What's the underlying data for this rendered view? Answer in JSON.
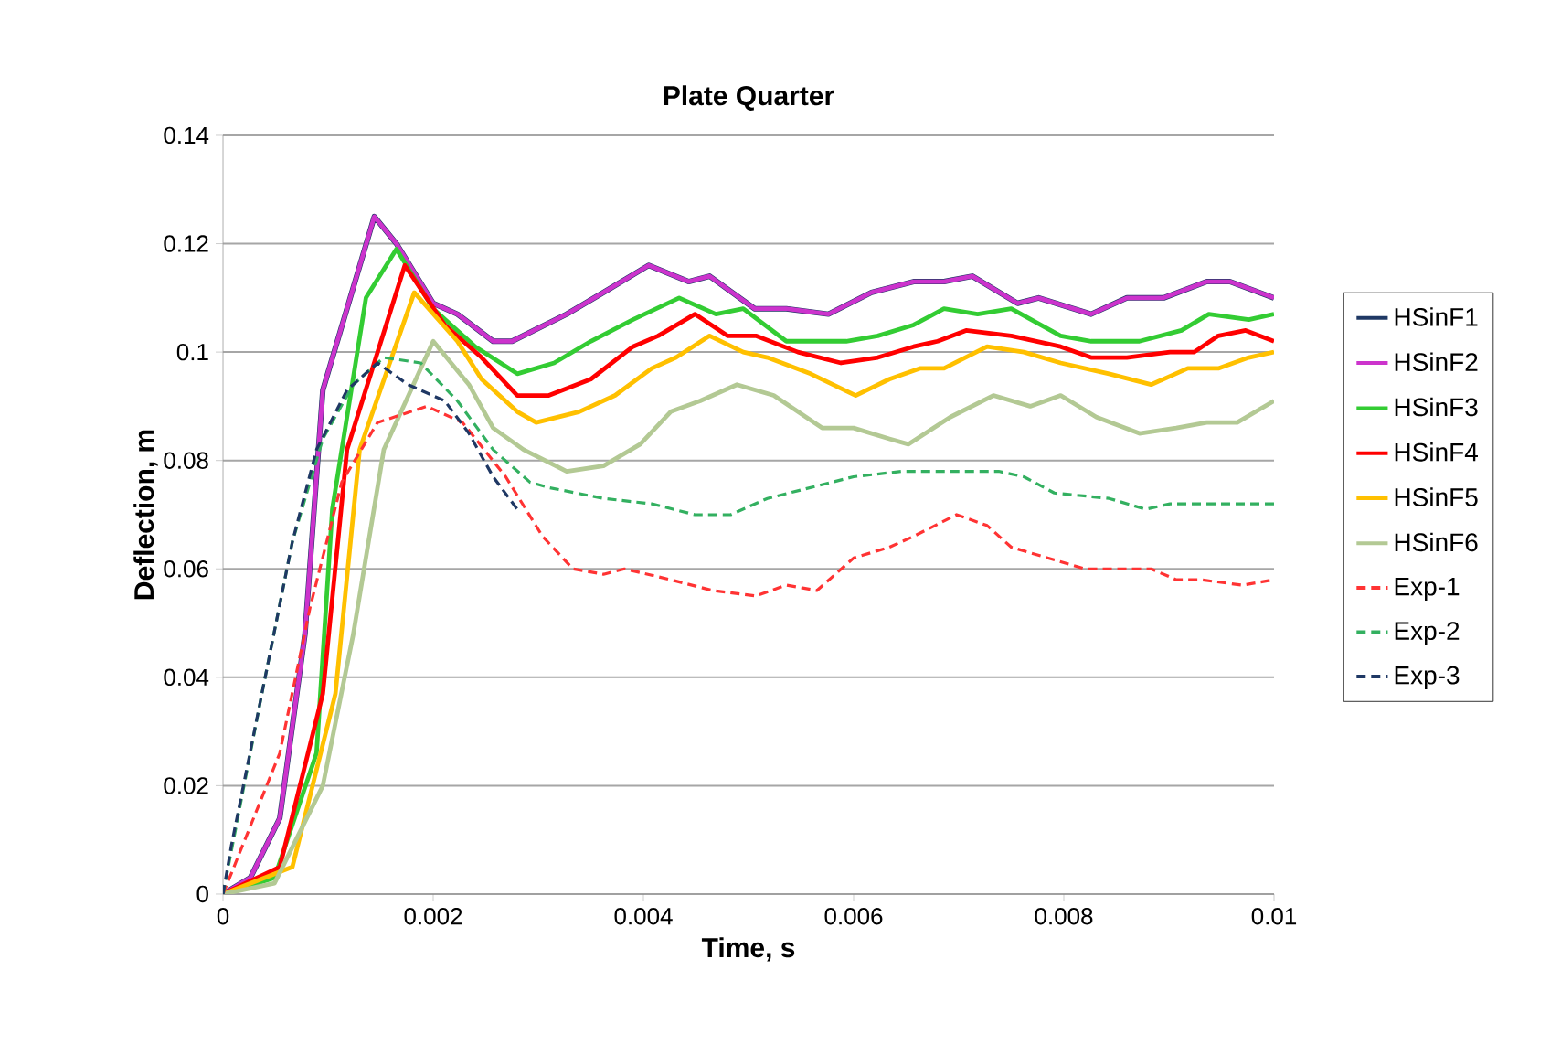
{
  "chart_data": {
    "type": "line",
    "title": "Plate Quarter",
    "xlabel": "Time, s",
    "ylabel": "Deflection, m",
    "xlim": [
      0,
      0.01
    ],
    "ylim": [
      0,
      0.14
    ],
    "xticks": [
      0,
      0.002,
      0.004,
      0.006,
      0.008,
      0.01
    ],
    "yticks": [
      0,
      0.02,
      0.04,
      0.06,
      0.08,
      0.1,
      0.12,
      0.14
    ],
    "grid": "y",
    "legend": "right",
    "marker": "none",
    "series": [
      {
        "name": "HSinF1",
        "color": "#1f3864",
        "line_style": "solid",
        "x": [
          0,
          0.00026,
          0.00054,
          0.00078,
          0.00095,
          0.00144,
          0.00165,
          0.002,
          0.00223,
          0.00257,
          0.00275,
          0.00327,
          0.00362,
          0.00405,
          0.00443,
          0.00463,
          0.00506,
          0.00536,
          0.00576,
          0.00617,
          0.00657,
          0.00686,
          0.00713,
          0.00756,
          0.00776,
          0.00826,
          0.0086,
          0.00895,
          0.00936,
          0.00958,
          0.01
        ],
        "values": [
          0,
          0.003,
          0.014,
          0.048,
          0.093,
          0.125,
          0.12,
          0.109,
          0.107,
          0.102,
          0.102,
          0.107,
          0.111,
          0.116,
          0.113,
          0.114,
          0.108,
          0.108,
          0.107,
          0.111,
          0.113,
          0.113,
          0.114,
          0.109,
          0.11,
          0.107,
          0.11,
          0.11,
          0.113,
          0.113,
          0.11
        ]
      },
      {
        "name": "HSinF2",
        "color": "#cc33cc",
        "line_style": "solid",
        "x": [
          0,
          0.00026,
          0.00054,
          0.00078,
          0.00095,
          0.00144,
          0.00165,
          0.002,
          0.00223,
          0.00257,
          0.00275,
          0.00327,
          0.00362,
          0.00405,
          0.00443,
          0.00463,
          0.00506,
          0.00536,
          0.00576,
          0.00617,
          0.00657,
          0.00686,
          0.00713,
          0.00756,
          0.00776,
          0.00826,
          0.0086,
          0.00895,
          0.00936,
          0.00958,
          0.01
        ],
        "values": [
          0,
          0.003,
          0.014,
          0.048,
          0.093,
          0.125,
          0.12,
          0.109,
          0.107,
          0.102,
          0.102,
          0.107,
          0.111,
          0.116,
          0.113,
          0.114,
          0.108,
          0.108,
          0.107,
          0.111,
          0.113,
          0.113,
          0.114,
          0.109,
          0.11,
          0.107,
          0.11,
          0.11,
          0.113,
          0.113,
          0.11
        ]
      },
      {
        "name": "HSinF3",
        "color": "#33cc33",
        "line_style": "solid",
        "x": [
          0,
          0.00049,
          0.00089,
          0.00104,
          0.00136,
          0.00165,
          0.002,
          0.0024,
          0.0028,
          0.00315,
          0.0035,
          0.0039,
          0.00434,
          0.00469,
          0.00495,
          0.00536,
          0.00593,
          0.00623,
          0.00657,
          0.00686,
          0.00718,
          0.0075,
          0.00797,
          0.00826,
          0.00872,
          0.00912,
          0.00938,
          0.00976,
          0.01
        ],
        "values": [
          0,
          0.003,
          0.026,
          0.071,
          0.11,
          0.119,
          0.108,
          0.101,
          0.096,
          0.098,
          0.102,
          0.106,
          0.11,
          0.107,
          0.108,
          0.102,
          0.102,
          0.103,
          0.105,
          0.108,
          0.107,
          0.108,
          0.103,
          0.102,
          0.102,
          0.104,
          0.107,
          0.106,
          0.107
        ]
      },
      {
        "name": "HSinF4",
        "color": "#ff0000",
        "line_style": "solid",
        "x": [
          0,
          0.00054,
          0.00095,
          0.00118,
          0.00173,
          0.00211,
          0.00246,
          0.0028,
          0.0031,
          0.0035,
          0.0039,
          0.00414,
          0.00449,
          0.0048,
          0.00507,
          0.00547,
          0.00588,
          0.00623,
          0.00657,
          0.0068,
          0.00707,
          0.0075,
          0.00797,
          0.00826,
          0.0086,
          0.00901,
          0.00924,
          0.00947,
          0.00973,
          0.01
        ],
        "values": [
          0,
          0.005,
          0.037,
          0.082,
          0.116,
          0.105,
          0.099,
          0.092,
          0.092,
          0.095,
          0.101,
          0.103,
          0.107,
          0.103,
          0.103,
          0.1,
          0.098,
          0.099,
          0.101,
          0.102,
          0.104,
          0.103,
          0.101,
          0.099,
          0.099,
          0.1,
          0.1,
          0.103,
          0.104,
          0.102
        ]
      },
      {
        "name": "HSinF5",
        "color": "#ffc000",
        "line_style": "solid",
        "x": [
          0,
          0.00066,
          0.00107,
          0.0013,
          0.00182,
          0.00223,
          0.00246,
          0.0028,
          0.00298,
          0.00339,
          0.00373,
          0.00408,
          0.00431,
          0.00463,
          0.00495,
          0.00518,
          0.00559,
          0.00602,
          0.00634,
          0.00663,
          0.00686,
          0.00727,
          0.00762,
          0.00797,
          0.00843,
          0.00883,
          0.00918,
          0.00947,
          0.00976,
          0.01
        ],
        "values": [
          0,
          0.005,
          0.037,
          0.082,
          0.111,
          0.102,
          0.095,
          0.089,
          0.087,
          0.089,
          0.092,
          0.097,
          0.099,
          0.103,
          0.1,
          0.099,
          0.096,
          0.092,
          0.095,
          0.097,
          0.097,
          0.101,
          0.1,
          0.098,
          0.096,
          0.094,
          0.097,
          0.097,
          0.099,
          0.1
        ]
      },
      {
        "name": "HSinF6",
        "color": "#b3c994",
        "line_style": "solid",
        "x": [
          0,
          0.00049,
          0.00095,
          0.00124,
          0.00153,
          0.002,
          0.00234,
          0.00257,
          0.00286,
          0.00327,
          0.00362,
          0.00397,
          0.00426,
          0.00454,
          0.00489,
          0.00524,
          0.0057,
          0.006,
          0.00634,
          0.00652,
          0.00692,
          0.00733,
          0.00768,
          0.00797,
          0.00831,
          0.00872,
          0.00907,
          0.00936,
          0.00965,
          0.01
        ],
        "values": [
          0,
          0.002,
          0.02,
          0.048,
          0.082,
          0.102,
          0.094,
          0.086,
          0.082,
          0.078,
          0.079,
          0.083,
          0.089,
          0.091,
          0.094,
          0.092,
          0.086,
          0.086,
          0.084,
          0.083,
          0.088,
          0.092,
          0.09,
          0.092,
          0.088,
          0.085,
          0.086,
          0.087,
          0.087,
          0.091
        ]
      },
      {
        "name": "Exp-1",
        "color": "#ff3333",
        "line_style": "dashed",
        "x": [
          0,
          0.00054,
          0.00083,
          0.00113,
          0.00147,
          0.00194,
          0.00228,
          0.00269,
          0.00304,
          0.00333,
          0.00362,
          0.00382,
          0.00426,
          0.00466,
          0.00507,
          0.00536,
          0.00565,
          0.006,
          0.00634,
          0.00657,
          0.00698,
          0.00727,
          0.0075,
          0.00785,
          0.0082,
          0.0086,
          0.00883,
          0.00907,
          0.0093,
          0.0097,
          0.01
        ],
        "values": [
          0,
          0.026,
          0.053,
          0.076,
          0.087,
          0.09,
          0.087,
          0.077,
          0.066,
          0.06,
          0.059,
          0.06,
          0.058,
          0.056,
          0.055,
          0.057,
          0.056,
          0.062,
          0.064,
          0.066,
          0.07,
          0.068,
          0.064,
          0.062,
          0.06,
          0.06,
          0.06,
          0.058,
          0.058,
          0.057,
          0.058
        ]
      },
      {
        "name": "Exp-2",
        "color": "#33b060",
        "line_style": "dashed",
        "x": [
          0,
          0.00037,
          0.00066,
          0.00095,
          0.00124,
          0.00153,
          0.00188,
          0.00223,
          0.00257,
          0.00292,
          0.0031,
          0.00362,
          0.00408,
          0.00449,
          0.00483,
          0.00518,
          0.00559,
          0.006,
          0.00646,
          0.0068,
          0.00738,
          0.00762,
          0.00791,
          0.00843,
          0.00878,
          0.00901,
          0.01
        ],
        "values": [
          0,
          0.037,
          0.065,
          0.084,
          0.094,
          0.099,
          0.098,
          0.091,
          0.082,
          0.076,
          0.075,
          0.073,
          0.072,
          0.07,
          0.07,
          0.073,
          0.075,
          0.077,
          0.078,
          0.078,
          0.078,
          0.077,
          0.074,
          0.073,
          0.071,
          0.072,
          0.072
        ]
      },
      {
        "name": "Exp-3",
        "color": "#1f3864",
        "line_style": "dashed",
        "x": [
          0,
          8e-05,
          0.00037,
          0.00066,
          0.00089,
          0.00118,
          0.00147,
          0.00176,
          0.00211,
          0.00234,
          0.00257,
          0.0028
        ],
        "values": [
          0,
          0.009,
          0.037,
          0.065,
          0.082,
          0.093,
          0.098,
          0.094,
          0.091,
          0.085,
          0.077,
          0.071
        ]
      }
    ]
  }
}
